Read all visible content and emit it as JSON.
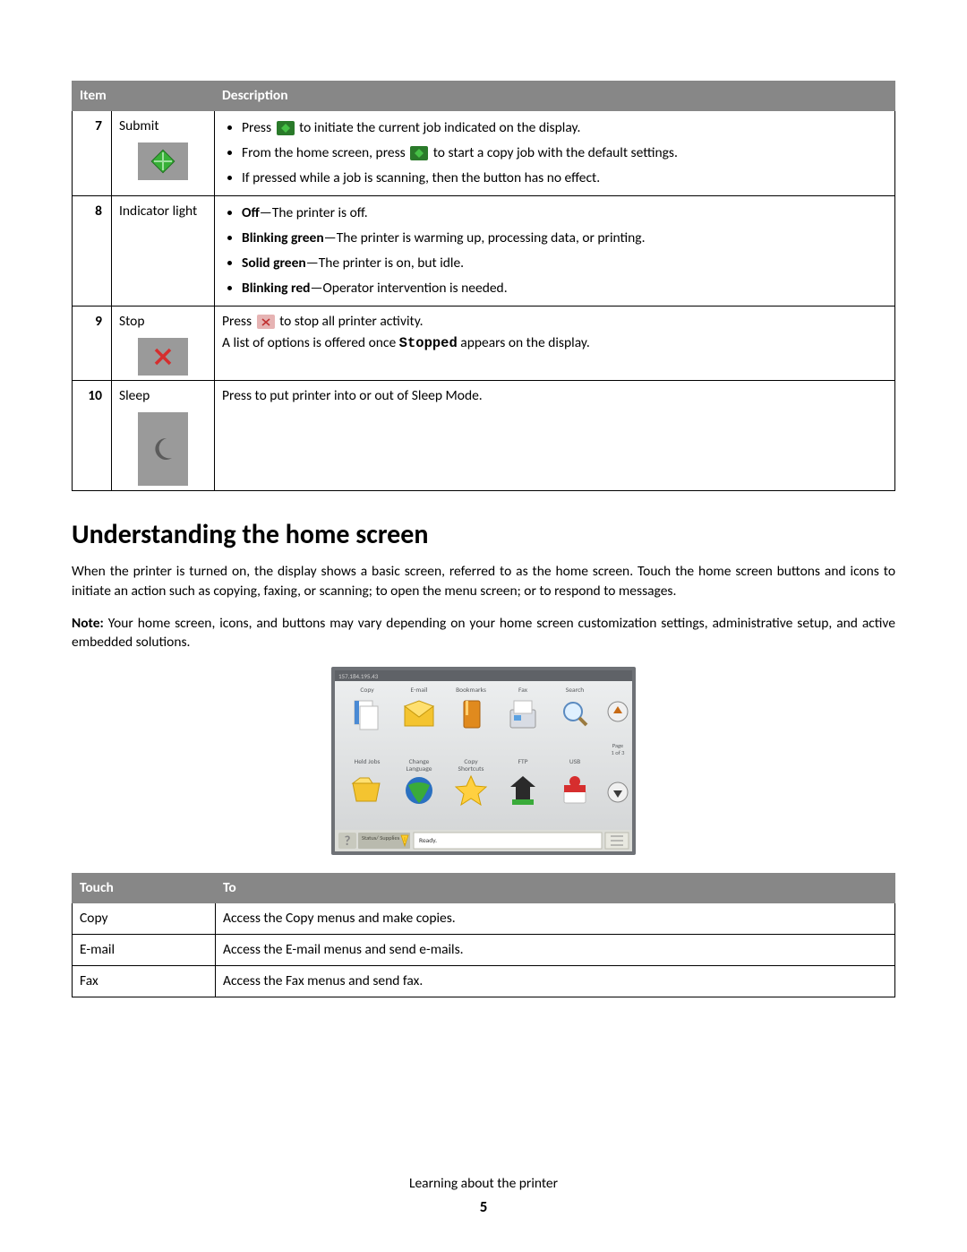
{
  "table1": {
    "headers": [
      "Item",
      "Description"
    ],
    "rows": [
      {
        "num": "7",
        "name": "Submit",
        "icon": "diamond-green",
        "desc": {
          "type": "list",
          "items": [
            {
              "pre": "Press ",
              "btn": "green",
              "post": " to initiate the current job indicated on the display."
            },
            {
              "pre": "From the home screen, press ",
              "btn": "green",
              "post": " to start a copy job with the default settings."
            },
            {
              "text": "If pressed while a job is scanning, then the button has no effect."
            }
          ]
        }
      },
      {
        "num": "8",
        "name": "Indicator light",
        "desc": {
          "type": "boldlist",
          "items": [
            {
              "bold": "Off",
              "rest": "—The printer is off."
            },
            {
              "bold": "Blinking green",
              "rest": "—The printer is warming up, processing data, or printing."
            },
            {
              "bold": "Solid green",
              "rest": "—The printer is on, but idle."
            },
            {
              "bold": "Blinking red",
              "rest": "—Operator intervention is needed."
            }
          ]
        }
      },
      {
        "num": "9",
        "name": "Stop",
        "icon": "x-red",
        "desc": {
          "type": "stop",
          "line1_pre": "Press ",
          "line1_post": " to stop all printer activity.",
          "line2_pre": "A list of options is offered once ",
          "line2_mono": "Stopped",
          "line2_post": " appears on the display."
        }
      },
      {
        "num": "10",
        "name": "Sleep",
        "icon": "moon",
        "desc": {
          "type": "plain",
          "text": "Press to put printer into or out of Sleep Mode."
        }
      }
    ]
  },
  "section_title": "Understanding the home screen",
  "para1": "When the printer is turned on, the display shows a basic screen, referred to as the home screen. Touch the home screen buttons and icons to initiate an action such as copying, faxing, or scanning; to open the menu screen; or to respond to messages.",
  "para2_bold": "Note:",
  "para2_rest": " Your home screen, icons, and buttons may vary depending on your home screen customization settings, administrative setup, and active embedded solutions.",
  "home_screen": {
    "ip": "157.184.195.43",
    "row1": [
      "Copy",
      "E-mail",
      "Bookmarks",
      "Fax",
      "Search"
    ],
    "row2": [
      "Held Jobs",
      "Change Language",
      "Copy Shortcuts",
      "FTP",
      "USB"
    ],
    "page_label": "Page 1 of 3",
    "status_label": "Status/ Supplies",
    "ready": "Ready.",
    "colors": {
      "frame": "#6e7176",
      "panel": "#e1e3e4",
      "panel_top": "#d8dadb",
      "label": "#5a5d60",
      "status_bar": "#dcddd8",
      "status_btn": "#b9baae",
      "ready_bg": "#ffffff"
    }
  },
  "table2": {
    "headers": [
      "Touch",
      "To"
    ],
    "rows": [
      {
        "touch": "Copy",
        "to": "Access the Copy menus and make copies."
      },
      {
        "touch": "E-mail",
        "to": "Access the E-mail menus and send e-mails."
      },
      {
        "touch": "Fax",
        "to": "Access the Fax menus and send fax."
      }
    ]
  },
  "footer_text": "Learning about the printer",
  "page_number": "5"
}
